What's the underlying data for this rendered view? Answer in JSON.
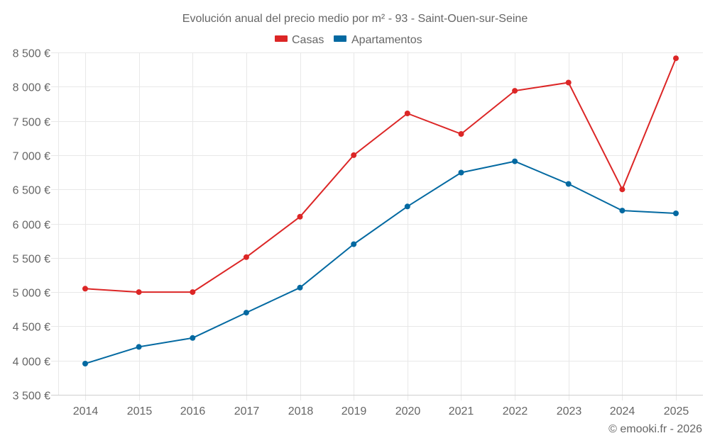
{
  "chart_data": {
    "type": "line",
    "title": "Evolución anual del precio medio por m² - 93 - Saint-Ouen-sur-Seine",
    "xlabel": "",
    "ylabel": "",
    "x": [
      "2014",
      "2015",
      "2016",
      "2017",
      "2018",
      "2019",
      "2020",
      "2021",
      "2022",
      "2023",
      "2024",
      "2025"
    ],
    "ylim": [
      3500,
      8500
    ],
    "yticks": [
      3500,
      4000,
      4500,
      5000,
      5500,
      6000,
      6500,
      7000,
      7500,
      8000,
      8500
    ],
    "ytick_labels": [
      "3 500 €",
      "4 000 €",
      "4 500 €",
      "5 000 €",
      "5 500 €",
      "6 000 €",
      "6 500 €",
      "7 000 €",
      "7 500 €",
      "8 000 €",
      "8 500 €"
    ],
    "grid": true,
    "legend_position": "top-center",
    "series": [
      {
        "name": "Casas",
        "color": "#dc2626",
        "values": [
          5050,
          5000,
          5000,
          5510,
          6100,
          7000,
          7610,
          7310,
          7940,
          8060,
          6500,
          8415
        ]
      },
      {
        "name": "Apartamentos",
        "color": "#0369a1",
        "values": [
          3955,
          4200,
          4330,
          4700,
          5065,
          5700,
          6250,
          6745,
          6910,
          6580,
          6190,
          6150
        ]
      }
    ],
    "credit": "© emooki.fr - 2026"
  }
}
